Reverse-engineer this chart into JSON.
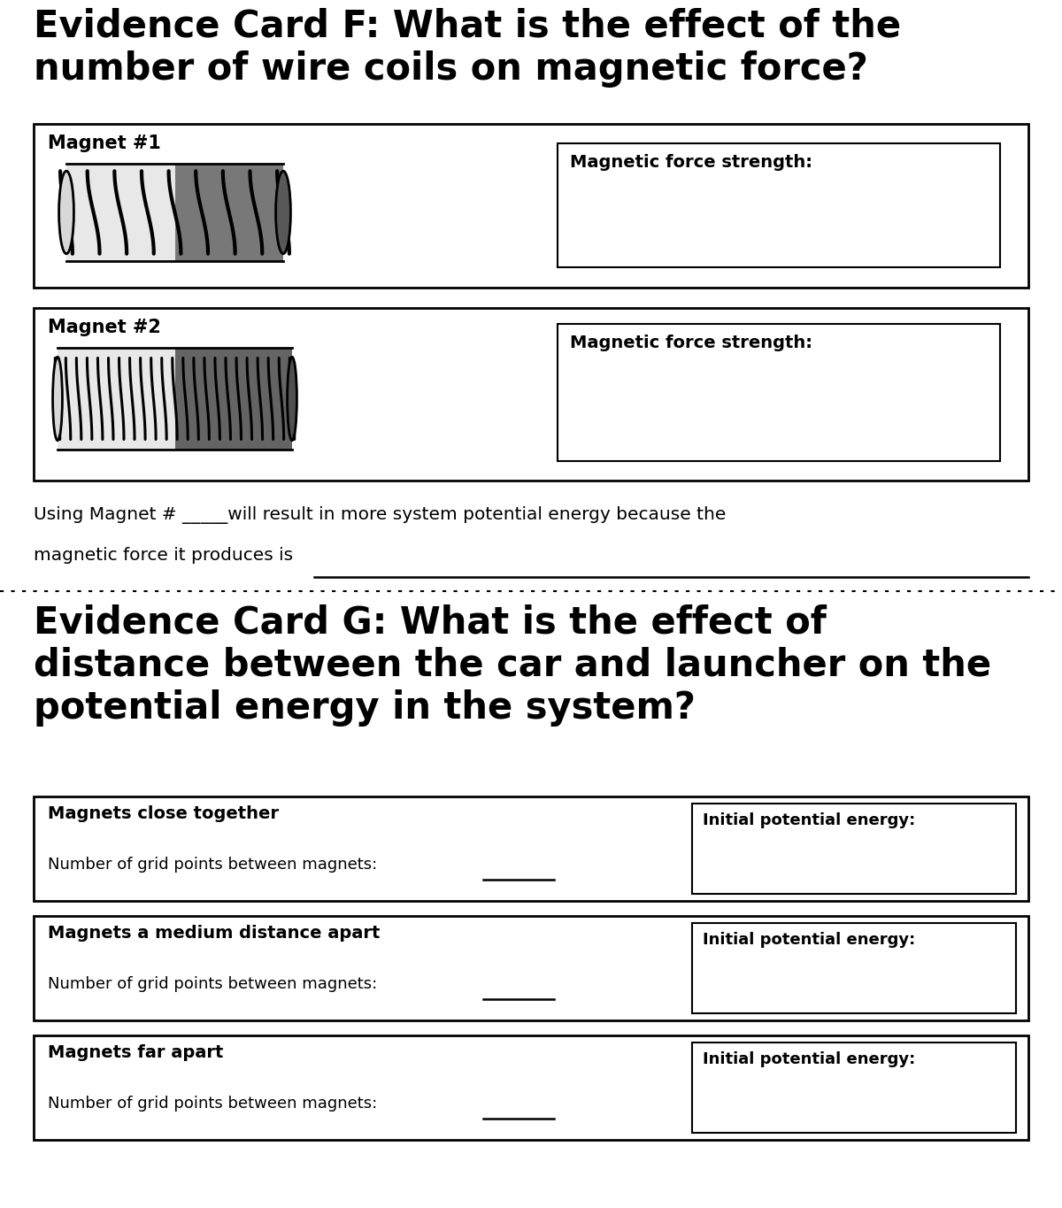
{
  "title_F": "Evidence Card F: What is the effect of the\nnumber of wire coils on magnetic force?",
  "title_G": "Evidence Card G: What is the effect of\ndistance between the car and launcher on the\npotential energy in the system?",
  "magnet1_label": "Magnet #1",
  "magnet2_label": "Magnet #2",
  "force_strength_label": "Magnetic force strength:",
  "sentence1": "Using Magnet # _____will result in more system potential energy because the",
  "sentence2": "magnetic force it produces is",
  "section_G_items": [
    {
      "title": "Magnets close together",
      "sub": "Number of grid points between magnets:",
      "energy_label": "Initial potential energy:"
    },
    {
      "title": "Magnets a medium distance apart",
      "sub": "Number of grid points between magnets:",
      "energy_label": "Initial potential energy:"
    },
    {
      "title": "Magnets far apart",
      "sub": "Number of grid points between magnets:",
      "energy_label": "Initial potential energy:"
    }
  ],
  "bg_color": "#ffffff",
  "text_color": "#000000",
  "magnet1_n_coils": 8,
  "magnet1_light_coils": 4,
  "magnet2_n_coils": 22,
  "coil_lw1": 3.0,
  "coil_lw2": 2.2
}
